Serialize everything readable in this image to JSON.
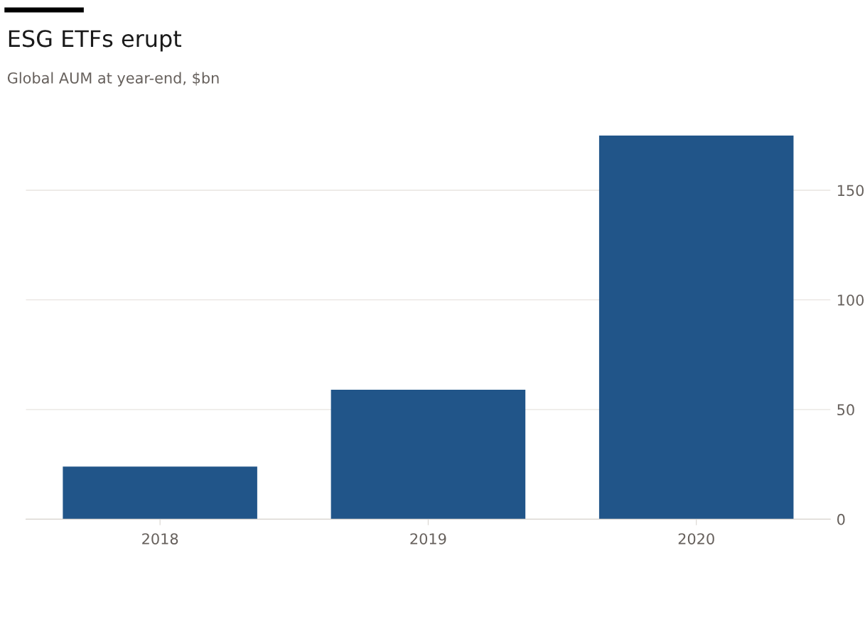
{
  "chart_data": {
    "type": "bar",
    "title": "ESG ETFs erupt",
    "subtitle": "Global AUM at year-end, $bn",
    "categories": [
      "2018",
      "2019",
      "2020"
    ],
    "values": [
      24,
      59,
      175
    ],
    "color": "#215589",
    "ylim": [
      0,
      175
    ],
    "yticks": [
      0,
      50,
      100,
      150
    ],
    "grid": "y"
  }
}
